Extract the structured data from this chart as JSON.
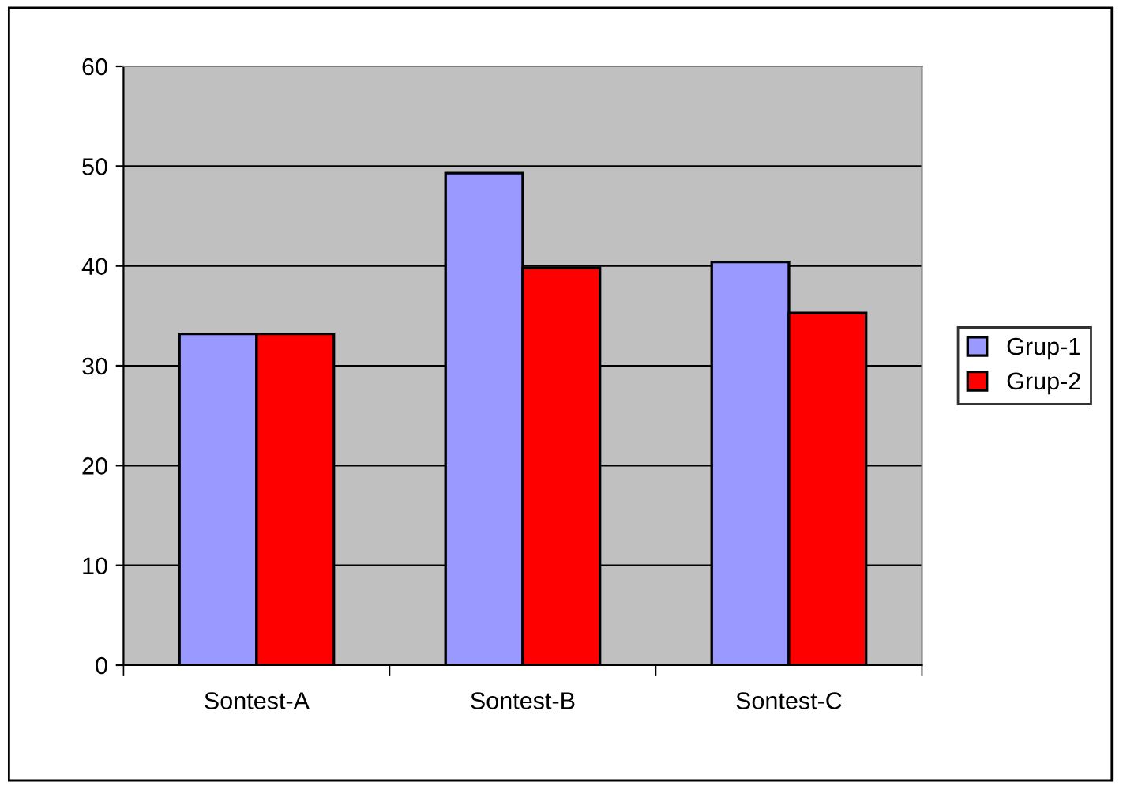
{
  "chart_data": {
    "type": "bar",
    "categories": [
      "Sontest-A",
      "Sontest-B",
      "Sontest-C"
    ],
    "series": [
      {
        "name": "Grup-1",
        "color": "#9999ff",
        "values": [
          33.2,
          49.3,
          40.4
        ]
      },
      {
        "name": "Grup-2",
        "color": "#ff0000",
        "values": [
          33.2,
          39.8,
          35.3
        ]
      }
    ],
    "ylim": [
      0,
      60
    ],
    "yticks": [
      0,
      10,
      20,
      30,
      40,
      50,
      60
    ],
    "grid": "y",
    "legend": "right"
  }
}
